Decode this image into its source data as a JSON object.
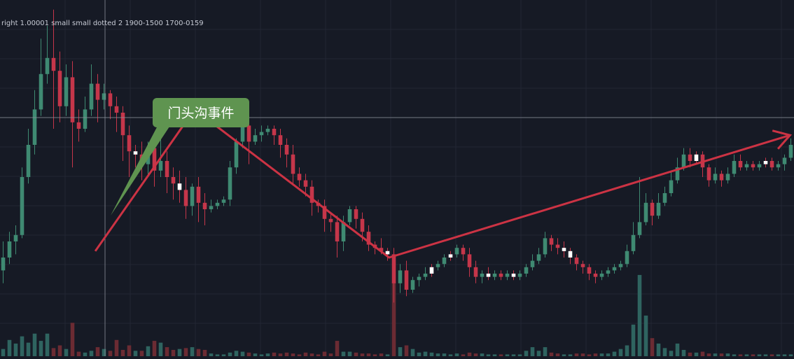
{
  "legend_text": "right 1.00001 small small dotted 2 1900-1500 1700-0159",
  "annotation": {
    "label": "门头沟事件"
  },
  "colors": {
    "background": "#161a25",
    "grid": "#222633",
    "up": "#3f8a72",
    "down": "#c5364a",
    "neutral": "#ffffff",
    "volume_up": "#2f6460",
    "volume_down": "#6b2b33",
    "trend_line": "#cc3344",
    "callout_fill": "#5f9450",
    "crosshair": "#8a8e99"
  },
  "chart_data": {
    "type": "candlestick",
    "title": "",
    "xlabel": "",
    "ylabel": "",
    "grid": true,
    "price_range": [
      0,
      100
    ],
    "volume_range": [
      0,
      100
    ],
    "candles": [
      [
        16,
        20,
        12,
        25,
        "up",
        8
      ],
      [
        20,
        25,
        18,
        28,
        "up",
        18
      ],
      [
        25,
        27,
        21,
        30,
        "up",
        14
      ],
      [
        27,
        45,
        26,
        48,
        "up",
        22
      ],
      [
        45,
        55,
        43,
        60,
        "up",
        15
      ],
      [
        55,
        66,
        52,
        72,
        "up",
        25
      ],
      [
        66,
        77,
        64,
        88,
        "up",
        17
      ],
      [
        77,
        82,
        74,
        92,
        "up",
        25
      ],
      [
        82,
        78,
        60,
        97,
        "down",
        9
      ],
      [
        78,
        67,
        62,
        84,
        "down",
        12
      ],
      [
        67,
        76,
        64,
        80,
        "up",
        8
      ],
      [
        76,
        62,
        48,
        81,
        "down",
        37
      ],
      [
        62,
        60,
        56,
        66,
        "down",
        5
      ],
      [
        60,
        66,
        59,
        70,
        "up",
        4
      ],
      [
        66,
        74,
        64,
        80,
        "up",
        6
      ],
      [
        74,
        69,
        62,
        77,
        "down",
        10
      ],
      [
        69,
        71,
        66,
        74,
        "up",
        8
      ],
      [
        71,
        67,
        63,
        72,
        "down",
        6
      ],
      [
        67,
        65,
        59,
        70,
        "down",
        18
      ],
      [
        65,
        58,
        50,
        67,
        "down",
        7
      ],
      [
        58,
        53,
        45,
        61,
        "down",
        12
      ],
      [
        53,
        52,
        48,
        55,
        "neutral",
        6
      ],
      [
        52,
        49,
        44,
        56,
        "down",
        6
      ],
      [
        49,
        54,
        45,
        56,
        "up",
        11
      ],
      [
        54,
        47,
        42,
        58,
        "down",
        17
      ],
      [
        47,
        50,
        45,
        57,
        "up",
        15
      ],
      [
        50,
        45,
        40,
        53,
        "down",
        10
      ],
      [
        45,
        43,
        38,
        48,
        "down",
        7
      ],
      [
        43,
        41,
        37,
        47,
        "neutral",
        8
      ],
      [
        41,
        36,
        32,
        45,
        "down",
        9
      ],
      [
        36,
        42,
        33,
        43,
        "up",
        10
      ],
      [
        42,
        37,
        31,
        45,
        "down",
        8
      ],
      [
        37,
        35,
        30,
        40,
        "down",
        7
      ],
      [
        35,
        36,
        34,
        38,
        "up",
        3
      ],
      [
        36,
        37,
        35,
        38,
        "up",
        2
      ],
      [
        37,
        38,
        36,
        39,
        "up",
        2
      ],
      [
        38,
        48,
        36,
        50,
        "up",
        4
      ],
      [
        48,
        56,
        46,
        57,
        "up",
        6
      ],
      [
        56,
        61,
        54,
        64,
        "up",
        5
      ],
      [
        61,
        56,
        49,
        63,
        "down",
        4
      ],
      [
        56,
        58,
        55,
        60,
        "up",
        3
      ],
      [
        58,
        59,
        56,
        61,
        "up",
        2
      ],
      [
        59,
        60,
        58,
        61,
        "up",
        3
      ],
      [
        60,
        58,
        55,
        61,
        "down",
        4
      ],
      [
        58,
        55,
        51,
        60,
        "down",
        3
      ],
      [
        55,
        52,
        48,
        57,
        "down",
        4
      ],
      [
        52,
        46,
        43,
        55,
        "down",
        3
      ],
      [
        46,
        44,
        42,
        48,
        "down",
        2
      ],
      [
        44,
        42,
        39,
        46,
        "down",
        4
      ],
      [
        42,
        37,
        33,
        44,
        "down",
        3
      ],
      [
        37,
        36,
        34,
        38,
        "down",
        2
      ],
      [
        36,
        32,
        28,
        38,
        "down",
        5
      ],
      [
        32,
        31,
        28,
        34,
        "down",
        3
      ],
      [
        31,
        25,
        20,
        33,
        "down",
        17
      ],
      [
        25,
        31,
        22,
        33,
        "up",
        5
      ],
      [
        31,
        35,
        30,
        36,
        "up",
        5
      ],
      [
        35,
        32,
        29,
        36,
        "down",
        4
      ],
      [
        32,
        28,
        25,
        34,
        "down",
        3
      ],
      [
        28,
        24,
        22,
        30,
        "down",
        3
      ],
      [
        24,
        23,
        21,
        25,
        "down",
        2
      ],
      [
        23,
        22,
        21,
        26,
        "down",
        3
      ],
      [
        22,
        21,
        19,
        23,
        "neutral",
        2
      ],
      [
        21,
        12,
        6,
        23,
        "down",
        82
      ],
      [
        12,
        16,
        9,
        18,
        "up",
        10
      ],
      [
        16,
        10,
        8,
        19,
        "down",
        12
      ],
      [
        10,
        13,
        9,
        14,
        "up",
        8
      ],
      [
        13,
        14,
        11,
        15,
        "up",
        4
      ],
      [
        14,
        15,
        13,
        17,
        "up",
        5
      ],
      [
        15,
        17,
        14,
        18,
        "neutral",
        4
      ],
      [
        17,
        18,
        16,
        19,
        "up",
        3
      ],
      [
        18,
        20,
        17,
        21,
        "up",
        3
      ],
      [
        20,
        21,
        19,
        22,
        "neutral",
        2
      ],
      [
        21,
        23,
        20,
        24,
        "up",
        3
      ],
      [
        23,
        21,
        19,
        24,
        "down",
        2
      ],
      [
        21,
        17,
        14,
        23,
        "down",
        4
      ],
      [
        17,
        14,
        12,
        19,
        "down",
        3
      ],
      [
        14,
        15,
        12,
        16,
        "up",
        3
      ],
      [
        15,
        14,
        13,
        17,
        "neutral",
        2
      ],
      [
        14,
        15,
        13,
        16,
        "up",
        2
      ],
      [
        15,
        14,
        13,
        16,
        "down",
        2
      ],
      [
        14,
        15,
        13,
        16,
        "up",
        2
      ],
      [
        15,
        14,
        13,
        16,
        "neutral",
        2
      ],
      [
        14,
        15,
        13,
        16,
        "up",
        2
      ],
      [
        15,
        17,
        14,
        18,
        "up",
        6
      ],
      [
        17,
        19,
        16,
        21,
        "up",
        10
      ],
      [
        19,
        21,
        18,
        23,
        "up",
        6
      ],
      [
        21,
        26,
        20,
        28,
        "up",
        10
      ],
      [
        26,
        24,
        22,
        27,
        "down",
        4
      ],
      [
        24,
        23,
        21,
        26,
        "down",
        3
      ],
      [
        23,
        22,
        20,
        25,
        "neutral",
        2
      ],
      [
        22,
        20,
        18,
        23,
        "neutral",
        2
      ],
      [
        20,
        18,
        16,
        21,
        "down",
        3
      ],
      [
        18,
        17,
        15,
        19,
        "down",
        3
      ],
      [
        17,
        15,
        13,
        18,
        "down",
        2
      ],
      [
        15,
        14,
        12,
        16,
        "down",
        3
      ],
      [
        14,
        15,
        13,
        16,
        "up",
        3
      ],
      [
        15,
        16,
        14,
        17,
        "up",
        3
      ],
      [
        16,
        17,
        15,
        18,
        "up",
        5
      ],
      [
        17,
        18,
        16,
        19,
        "up",
        8
      ],
      [
        18,
        22,
        17,
        24,
        "up",
        12
      ],
      [
        22,
        27,
        21,
        31,
        "up",
        35
      ],
      [
        27,
        31,
        26,
        45,
        "up",
        90
      ],
      [
        31,
        37,
        30,
        40,
        "up",
        45
      ],
      [
        37,
        33,
        30,
        38,
        "down",
        20
      ],
      [
        33,
        37,
        32,
        40,
        "up",
        14
      ],
      [
        37,
        40,
        36,
        42,
        "up",
        9
      ],
      [
        40,
        44,
        39,
        47,
        "up",
        6
      ],
      [
        44,
        48,
        43,
        51,
        "up",
        14
      ],
      [
        48,
        52,
        47,
        54,
        "up",
        7
      ],
      [
        52,
        50,
        48,
        54,
        "down",
        4
      ],
      [
        50,
        52,
        49,
        53,
        "neutral",
        4
      ],
      [
        52,
        48,
        45,
        53,
        "down",
        5
      ],
      [
        48,
        44,
        42,
        49,
        "down",
        3
      ],
      [
        44,
        46,
        43,
        48,
        "up",
        3
      ],
      [
        46,
        44,
        42,
        47,
        "down",
        3
      ],
      [
        44,
        46,
        43,
        48,
        "up",
        3
      ],
      [
        46,
        50,
        45,
        52,
        "up",
        2
      ],
      [
        50,
        48,
        47,
        52,
        "down",
        2
      ],
      [
        48,
        49,
        47,
        50,
        "up",
        2
      ],
      [
        49,
        48,
        47,
        50,
        "down",
        2
      ],
      [
        48,
        49,
        47,
        50,
        "up",
        2
      ],
      [
        49,
        50,
        48,
        51,
        "neutral",
        2
      ],
      [
        50,
        48,
        47,
        51,
        "down",
        2
      ],
      [
        48,
        49,
        47,
        50,
        "up",
        2
      ],
      [
        49,
        51,
        47,
        52,
        "up",
        2
      ],
      [
        51,
        55,
        50,
        57,
        "up",
        2
      ]
    ],
    "annotations": [
      {
        "type": "trendline",
        "label": "",
        "points": [
          [
            0.12,
            22
          ],
          [
            0.245,
            66
          ],
          [
            0.49,
            20
          ],
          [
            0.995,
            58
          ]
        ]
      }
    ]
  }
}
